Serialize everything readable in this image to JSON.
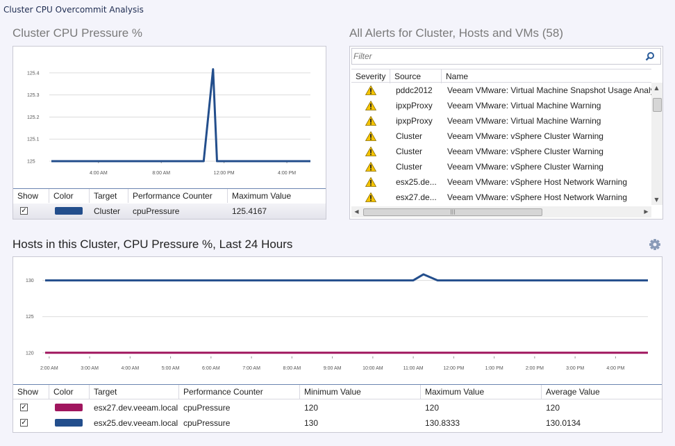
{
  "window": {
    "title": "Cluster CPU Overcommit Analysis"
  },
  "cluster_chart": {
    "title": "Cluster CPU Pressure %",
    "table_headers": [
      "Show",
      "Color",
      "Target",
      "Performance Counter",
      "Maximum Value"
    ],
    "rows": [
      {
        "checked": true,
        "color": "#234e8c",
        "target": "Cluster",
        "counter": "cpuPressure",
        "max": "125.4167"
      }
    ]
  },
  "alerts": {
    "title": "All Alerts for Cluster, Hosts and VMs (58)",
    "filter_placeholder": "Filter",
    "headers": [
      "Severity",
      "Source",
      "Name"
    ],
    "rows": [
      {
        "severity": "warning-icon",
        "source": "pddc2012",
        "name": "Veeam VMware: Virtual Machine Snapshot Usage Analysis"
      },
      {
        "severity": "warning-icon",
        "source": "ipxpProxy",
        "name": "Veeam VMware: Virtual Machine Warning"
      },
      {
        "severity": "warning-icon",
        "source": "ipxpProxy",
        "name": "Veeam VMware: Virtual Machine Warning"
      },
      {
        "severity": "warning-icon",
        "source": "Cluster",
        "name": "Veeam VMware: vSphere Cluster Warning"
      },
      {
        "severity": "warning-icon",
        "source": "Cluster",
        "name": "Veeam VMware: vSphere Cluster Warning"
      },
      {
        "severity": "warning-icon",
        "source": "Cluster",
        "name": "Veeam VMware: vSphere Cluster Warning"
      },
      {
        "severity": "warning-icon",
        "source": "esx25.de...",
        "name": "Veeam VMware: vSphere Host Network Warning"
      },
      {
        "severity": "warning-icon",
        "source": "esx27.de...",
        "name": "Veeam VMware: vSphere Host Network Warning"
      }
    ]
  },
  "hosts_chart": {
    "title": "Hosts in this Cluster, CPU Pressure %, Last 24 Hours",
    "settings_icon": "gear-icon",
    "table_headers": [
      "Show",
      "Color",
      "Target",
      "Performance Counter",
      "Minimum Value",
      "Maximum Value",
      "Average Value"
    ],
    "rows": [
      {
        "checked": true,
        "color": "#a0165e",
        "target": "esx27.dev.veeam.local",
        "counter": "cpuPressure",
        "min": "120",
        "max": "120",
        "avg": "120"
      },
      {
        "checked": true,
        "color": "#234e8c",
        "target": "esx25.dev.veeam.local",
        "counter": "cpuPressure",
        "min": "130",
        "max": "130.8333",
        "avg": "130.0134"
      }
    ]
  },
  "chart_data": [
    {
      "type": "line",
      "title": "Cluster CPU Pressure %",
      "y_ticks": [
        "125",
        "125.1",
        "125.2",
        "125.3",
        "125.4"
      ],
      "x_ticks": [
        "4:00 AM",
        "8:00 AM",
        "12:00 PM",
        "4:00 PM"
      ],
      "ylim": [
        125,
        125.45
      ],
      "x_hours_range": [
        1,
        17.5
      ],
      "x_tick_hours": [
        4,
        8,
        12,
        16
      ],
      "series": [
        {
          "name": "Cluster",
          "color": "#234e8c",
          "points": [
            [
              1,
              125
            ],
            [
              10.7,
              125
            ],
            [
              11.3,
              125.4167
            ],
            [
              11.55,
              125
            ],
            [
              17.5,
              125
            ]
          ]
        }
      ],
      "grid": true
    },
    {
      "type": "line",
      "title": "Hosts in this Cluster, CPU Pressure %, Last 24 Hours",
      "y_ticks": [
        "120",
        "125",
        "130"
      ],
      "x_ticks": [
        "2:00 AM",
        "3:00 AM",
        "4:00 AM",
        "5:00 AM",
        "6:00 AM",
        "7:00 AM",
        "8:00 AM",
        "9:00 AM",
        "10:00 AM",
        "11:00 AM",
        "12:00 PM",
        "1:00 PM",
        "2:00 PM",
        "3:00 PM",
        "4:00 PM"
      ],
      "ylim": [
        119.5,
        131.5
      ],
      "x_hours_range": [
        1.9,
        16.8
      ],
      "x_tick_hours": [
        2,
        3,
        4,
        5,
        6,
        7,
        8,
        9,
        10,
        11,
        12,
        13,
        14,
        15,
        16
      ],
      "series": [
        {
          "name": "esx25.dev.veeam.local",
          "color": "#234e8c",
          "points": [
            [
              1.9,
              130
            ],
            [
              11,
              130
            ],
            [
              11.25,
              130.8333
            ],
            [
              11.6,
              130
            ],
            [
              16.8,
              130
            ]
          ]
        },
        {
          "name": "esx27.dev.veeam.local",
          "color": "#a0165e",
          "points": [
            [
              1.9,
              120
            ],
            [
              16.8,
              120
            ]
          ]
        }
      ],
      "grid": true
    }
  ]
}
